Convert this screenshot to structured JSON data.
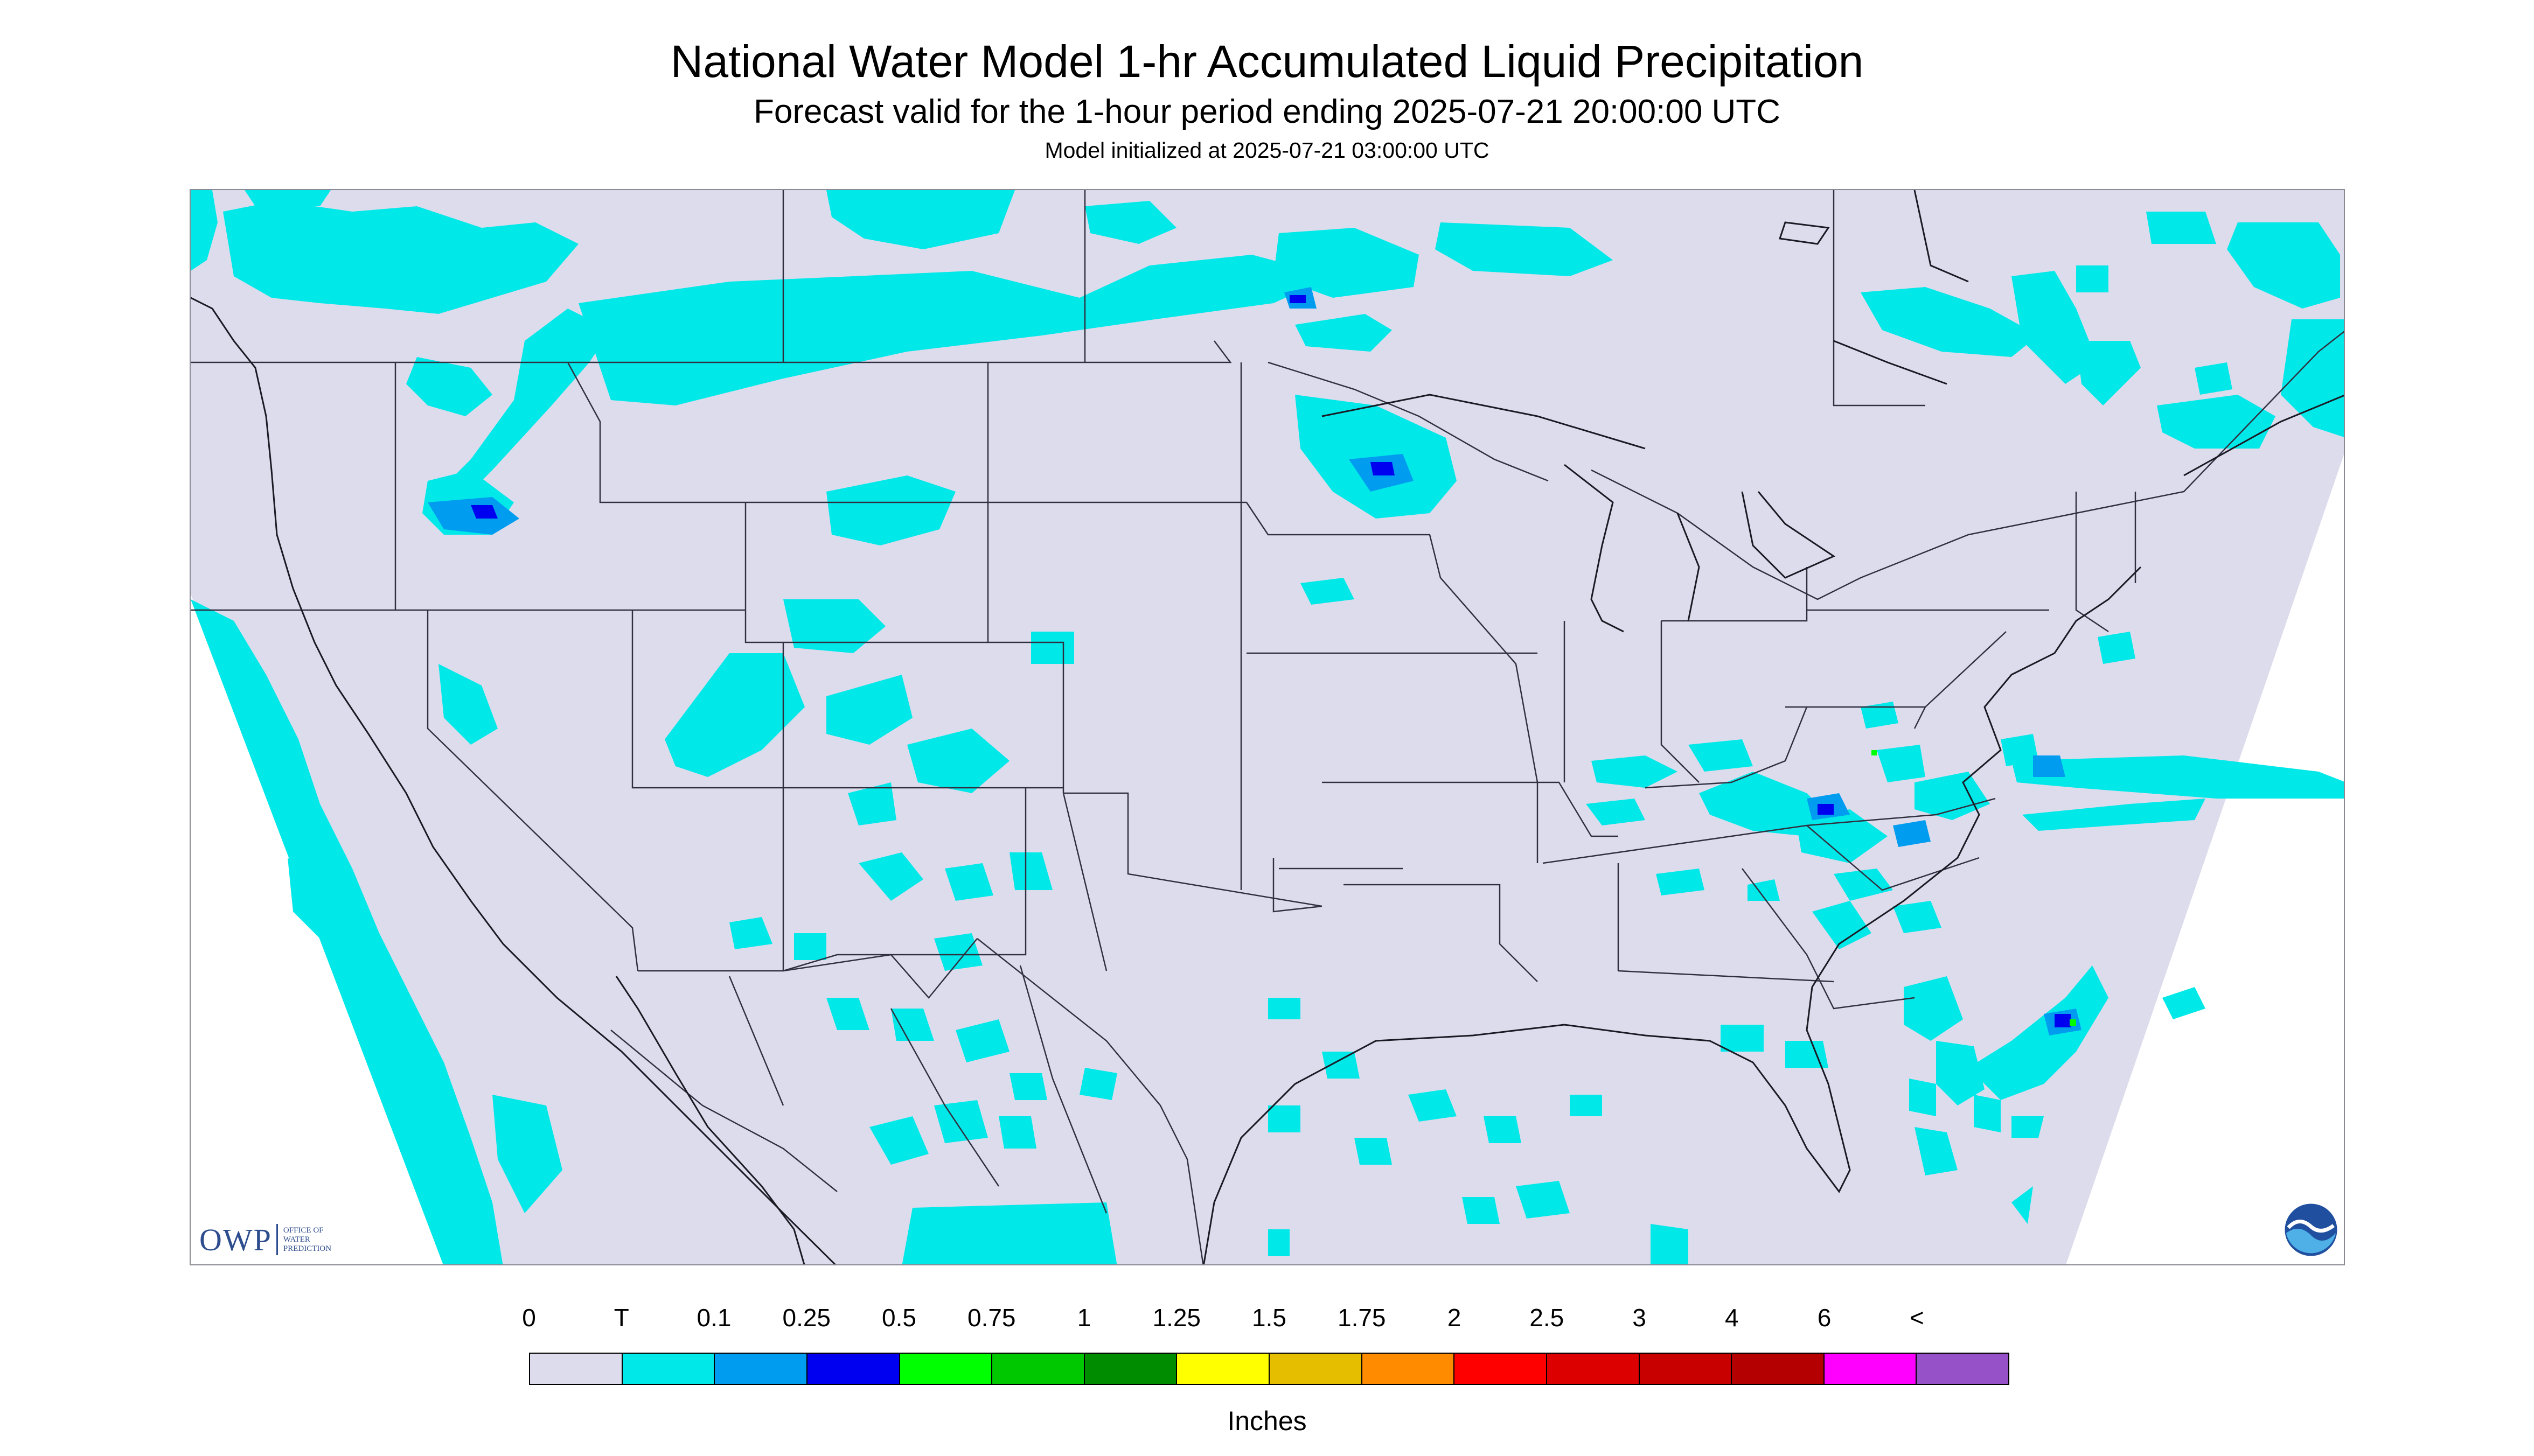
{
  "title": "National Water Model 1-hr Accumulated Liquid Precipitation",
  "subtitle": "Forecast valid for the 1-hour period ending 2025-07-21 20:00:00 UTC",
  "init_line": "Model initialized at 2025-07-21 03:00:00 UTC",
  "logos": {
    "owp_letters": "OWP",
    "owp_sub": [
      "OFFICE OF",
      "WATER",
      "PREDICTION"
    ],
    "noaa": "NOAA"
  },
  "colors": {
    "background_land": "#dcdcec",
    "outside_projection": "#ffffff",
    "boundary": "#303040"
  },
  "legend": {
    "unit": "Inches",
    "labels": [
      "0",
      "T",
      "0.1",
      "0.25",
      "0.5",
      "0.75",
      "1",
      "1.25",
      "1.5",
      "1.75",
      "2",
      "2.5",
      "3",
      "4",
      "6",
      "<"
    ],
    "colors": [
      "#dcdcec",
      "#00e8e8",
      "#009cf0",
      "#0000f0",
      "#00ff00",
      "#00c800",
      "#008c00",
      "#ffff00",
      "#e6be00",
      "#ff8c00",
      "#ff0000",
      "#dc0000",
      "#c80000",
      "#b40000",
      "#ff00ff",
      "#9650c8"
    ]
  }
}
